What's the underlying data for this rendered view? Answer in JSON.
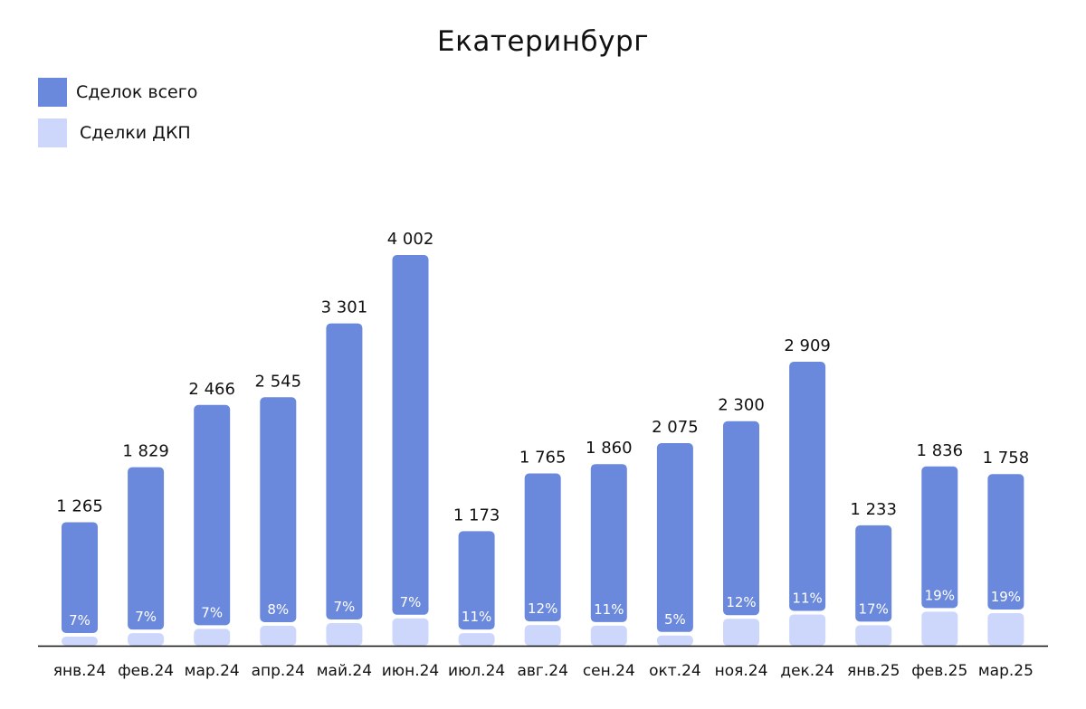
{
  "chart_data": {
    "type": "bar",
    "title": "Екатеринбург",
    "categories": [
      "янв.24",
      "фев.24",
      "мар.24",
      "апр.24",
      "май.24",
      "июн.24",
      "июл.24",
      "авг.24",
      "сен.24",
      "окт.24",
      "ноя.24",
      "дек.24",
      "янв.25",
      "фев.25",
      "мар.25"
    ],
    "series": [
      {
        "name": "Сделок всего",
        "color": "#6b89dc",
        "values": [
          1265,
          1829,
          2466,
          2545,
          3301,
          4002,
          1173,
          1765,
          1860,
          2075,
          2300,
          2909,
          1233,
          1836,
          1758
        ],
        "labels": [
          "1 265",
          "1 829",
          "2 466",
          "2 545",
          "3 301",
          "4 002",
          "1 173",
          "1 765",
          "1 860",
          "2 075",
          "2 300",
          "2 909",
          "1 233",
          "1 836",
          "1 758"
        ]
      },
      {
        "name": "Сделки ДКП",
        "color": "#cdd7fb",
        "share_labels": [
          "7%",
          "7%",
          "7%",
          "8%",
          "7%",
          "7%",
          "11%",
          "12%",
          "11%",
          "5%",
          "12%",
          "11%",
          "17%",
          "19%",
          "19%"
        ]
      }
    ],
    "xlabel": "",
    "ylabel": "",
    "ylim": [
      0,
      4002
    ]
  }
}
